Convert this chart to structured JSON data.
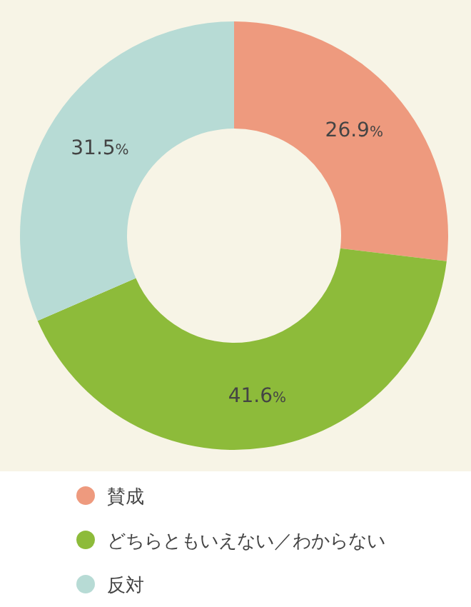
{
  "chart_data": {
    "type": "donut",
    "categories": [
      "賛成",
      "どちらともいえない／わからない",
      "反対"
    ],
    "values": [
      26.9,
      41.6,
      31.5
    ],
    "colors": [
      "#ee9a7e",
      "#8dbb3a",
      "#b7dbd5"
    ],
    "value_labels": [
      "26.9%",
      "41.6%",
      "31.5%"
    ],
    "legend": "bottom"
  }
}
